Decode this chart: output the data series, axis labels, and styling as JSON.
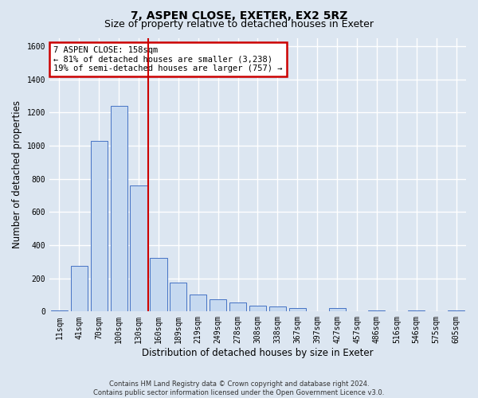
{
  "title_line1": "7, ASPEN CLOSE, EXETER, EX2 5RZ",
  "title_line2": "Size of property relative to detached houses in Exeter",
  "xlabel": "Distribution of detached houses by size in Exeter",
  "ylabel": "Number of detached properties",
  "footnote": "Contains HM Land Registry data © Crown copyright and database right 2024.\nContains public sector information licensed under the Open Government Licence v3.0.",
  "bar_labels": [
    "11sqm",
    "41sqm",
    "70sqm",
    "100sqm",
    "130sqm",
    "160sqm",
    "189sqm",
    "219sqm",
    "249sqm",
    "278sqm",
    "308sqm",
    "338sqm",
    "367sqm",
    "397sqm",
    "427sqm",
    "457sqm",
    "486sqm",
    "516sqm",
    "546sqm",
    "575sqm",
    "605sqm"
  ],
  "bar_values": [
    5,
    275,
    1030,
    1240,
    760,
    325,
    175,
    100,
    75,
    55,
    35,
    30,
    20,
    0,
    20,
    0,
    5,
    0,
    5,
    0,
    5
  ],
  "bar_color": "#c6d9f0",
  "bar_edge_color": "#4472c4",
  "vline_idx": 4.5,
  "vline_color": "#cc0000",
  "annotation_text": "7 ASPEN CLOSE: 158sqm\n← 81% of detached houses are smaller (3,238)\n19% of semi-detached houses are larger (757) →",
  "annotation_box_color": "#ffffff",
  "annotation_box_edge_color": "#cc0000",
  "ylim": [
    0,
    1650
  ],
  "yticks": [
    0,
    200,
    400,
    600,
    800,
    1000,
    1200,
    1400,
    1600
  ],
  "bg_color": "#dce6f1",
  "plot_bg_color": "#dce6f1",
  "grid_color": "#ffffff",
  "title_fontsize": 10,
  "subtitle_fontsize": 9,
  "axis_label_fontsize": 8.5,
  "tick_fontsize": 7
}
